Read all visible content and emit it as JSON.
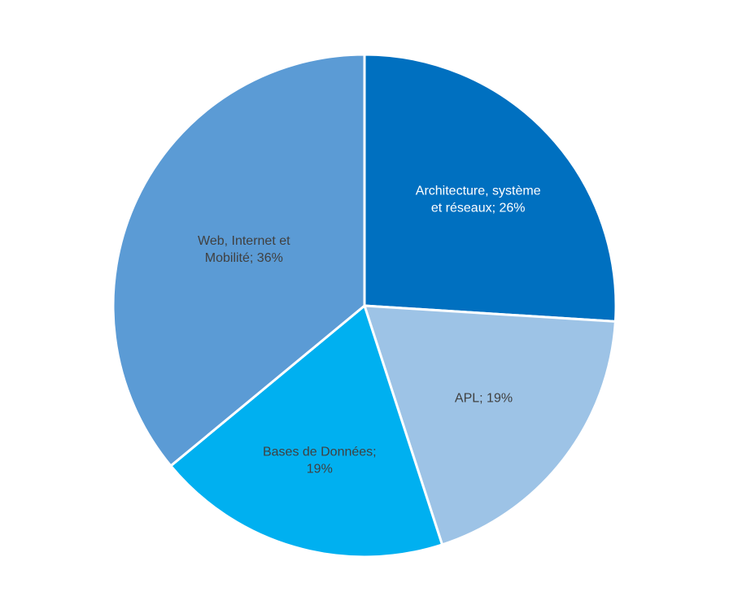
{
  "chart_data": {
    "type": "pie",
    "title": "",
    "slices": [
      {
        "label": "Architecture, système et réseaux",
        "value": 26,
        "color": "#0070c0",
        "text_color": "#ffffff",
        "label_lines": [
          "Architecture, système",
          "et réseaux; 26%"
        ]
      },
      {
        "label": "APL",
        "value": 19,
        "color": "#9dc3e6",
        "text_color": "#404040",
        "label_lines": [
          "APL; 19%"
        ]
      },
      {
        "label": "Bases de Données",
        "value": 19,
        "color": "#00b0f0",
        "text_color": "#404040",
        "label_lines": [
          "Bases de Données;",
          "19%"
        ]
      },
      {
        "label": "Web, Internet et Mobilité",
        "value": 36,
        "color": "#5b9bd5",
        "text_color": "#404040",
        "label_lines": [
          "Web, Internet et",
          "Mobilité; 36%"
        ]
      }
    ],
    "start_angle": "12 o'clock",
    "direction": "clockwise",
    "legend": "none",
    "data_labels": "inside"
  }
}
